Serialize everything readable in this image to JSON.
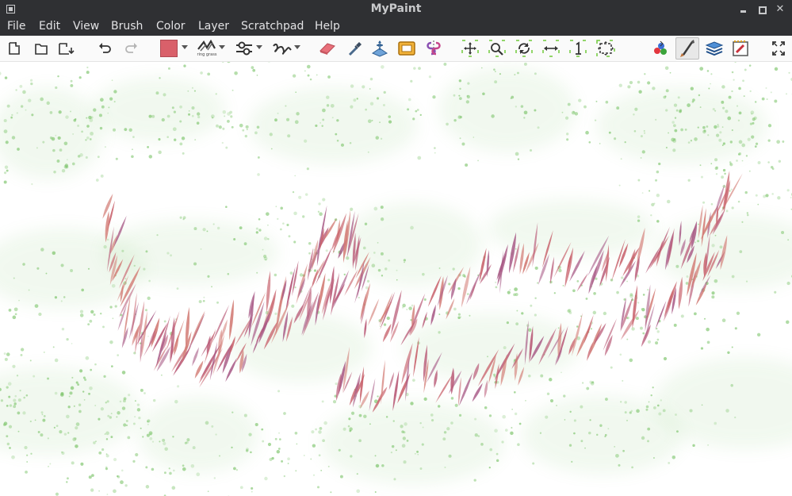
{
  "window": {
    "title": "MyPaint"
  },
  "menu": [
    "File",
    "Edit",
    "View",
    "Brush",
    "Color",
    "Layer",
    "Scratchpad",
    "Help"
  ],
  "toolbar": {
    "brush_preview_label": "ring grass",
    "current_color": "#d9606a",
    "items": [
      "new-document-icon",
      "open-folder-icon",
      "open-recent-icon",
      "undo-icon",
      "redo-icon",
      "color-swatch",
      "brush-selector",
      "brush-settings-icon",
      "stroke-shape-icon",
      "eraser-icon",
      "color-picker-icon",
      "frame-move-icon",
      "frame-icon",
      "symmetry-icon",
      "pan-view-icon",
      "zoom-view-icon",
      "rotate-view-icon",
      "mirror-view-icon",
      "reset-view-icon",
      "fit-view-icon",
      "color-wheel-icon",
      "brush-panel-icon",
      "layers-panel-icon",
      "scratchpad-panel-icon",
      "fullscreen-icon"
    ]
  },
  "canvas": {
    "background": "#ffffff",
    "stroke_colors": [
      "#c8626c",
      "#b95a77",
      "#d27a73",
      "#a85a86"
    ],
    "grass_color": "#7cc46a"
  }
}
